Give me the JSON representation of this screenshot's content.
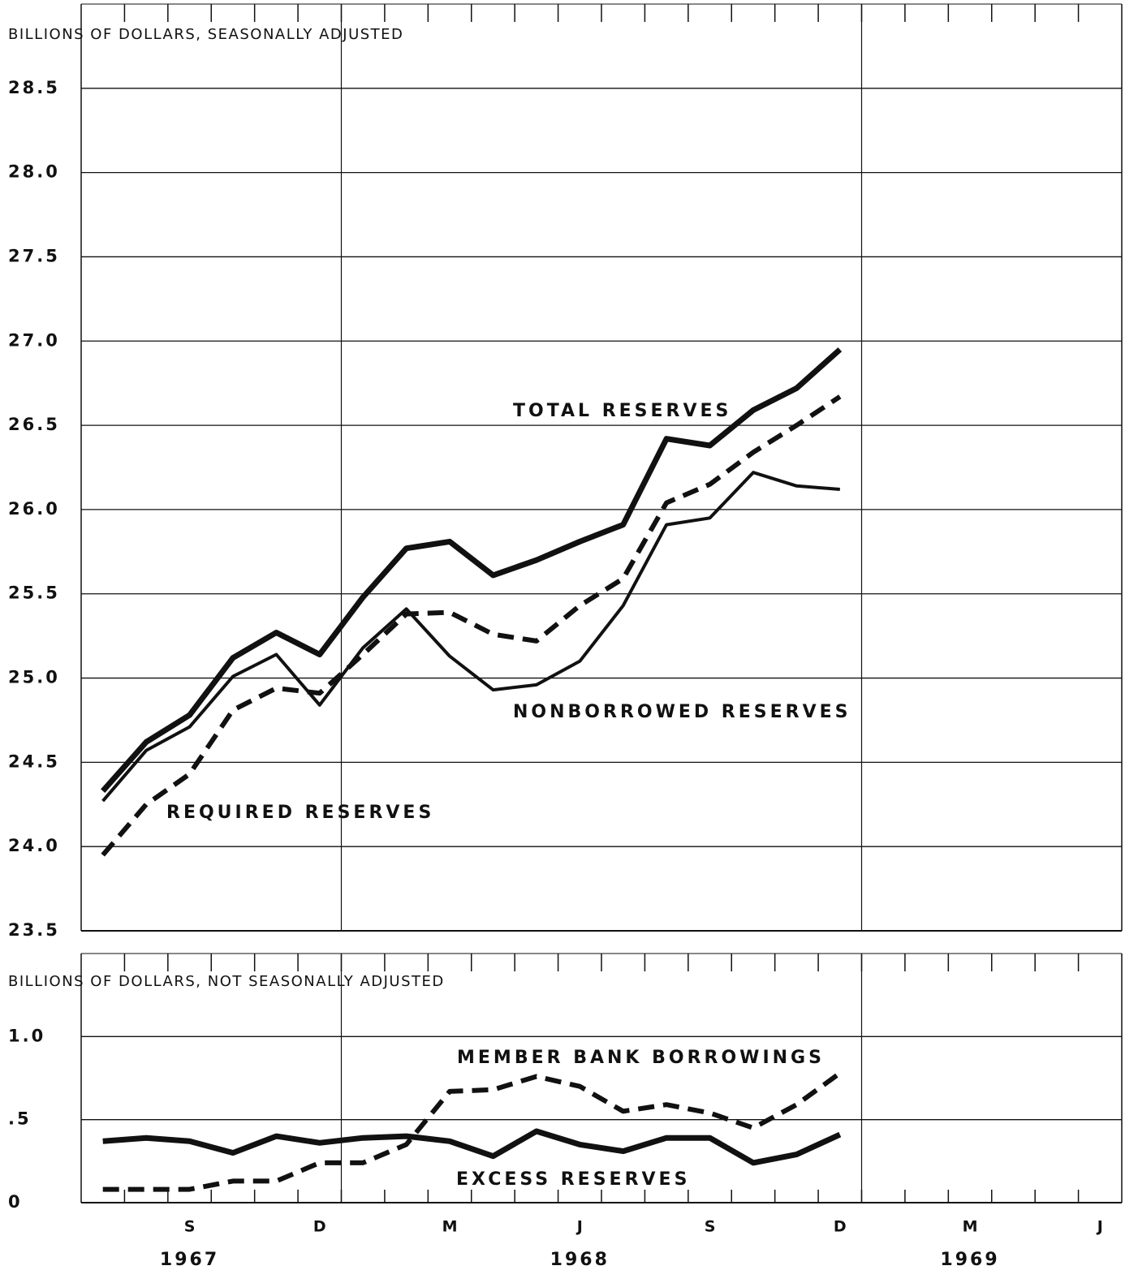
{
  "chart_data": [
    {
      "type": "line",
      "y_label": "BILLIONS OF DOLLARS, SEASONALLY ADJUSTED",
      "ylim": [
        23.5,
        29.0
      ],
      "yticks": [
        23.5,
        {
          "value": 24,
          "label": "24.0"
        },
        24.5,
        {
          "value": 25,
          "label": "25.0"
        },
        25.5,
        {
          "value": 26,
          "label": "26.0"
        },
        26.5,
        {
          "value": 27,
          "label": "27.0"
        },
        27.5,
        {
          "value": 28,
          "label": "28.0"
        },
        28.5
      ],
      "grid": true,
      "series": [
        {
          "name": "TOTAL RESERVES",
          "color": "#111111",
          "line_style": "heavy",
          "values": [
            24.33,
            24.62,
            24.78,
            25.12,
            25.27,
            25.14,
            25.48,
            25.77,
            25.81,
            25.61,
            25.7,
            25.81,
            25.91,
            26.42,
            26.38,
            26.59,
            26.72,
            26.95,
            null,
            null,
            null,
            null,
            null,
            null
          ]
        },
        {
          "name": "NONBORROWED RESERVES",
          "color": "#111111",
          "line_style": "light",
          "values": [
            24.27,
            24.57,
            24.71,
            25.01,
            25.14,
            24.84,
            25.18,
            25.41,
            25.13,
            24.93,
            24.96,
            25.1,
            25.43,
            25.91,
            25.95,
            26.22,
            26.14,
            26.12,
            null,
            null,
            null,
            null,
            null,
            null
          ]
        },
        {
          "name": "REQUIRED RESERVES",
          "color": "#111111",
          "line_style": "dashed",
          "values": [
            23.95,
            24.25,
            24.43,
            24.81,
            24.94,
            24.91,
            25.14,
            25.38,
            25.39,
            25.26,
            25.22,
            25.43,
            25.59,
            26.04,
            26.15,
            26.34,
            26.5,
            26.67,
            null,
            null,
            null,
            null,
            null,
            null
          ]
        }
      ]
    },
    {
      "type": "line",
      "y_label": "BILLIONS OF DOLLARS, NOT SEASONALLY ADJUSTED",
      "ylim": [
        0,
        1.5
      ],
      "yticks": [
        0,
        {
          "value": 0.5,
          "label": ".5"
        },
        {
          "value": 1,
          "label": "1.0"
        }
      ],
      "grid": true,
      "categories": [
        null,
        null,
        "S",
        null,
        null,
        "D",
        null,
        null,
        "M",
        null,
        null,
        "J",
        null,
        null,
        "S",
        null,
        null,
        "D",
        null,
        null,
        "M",
        null,
        null,
        "J"
      ],
      "year_labels": [
        "1967",
        "1968",
        "1969"
      ],
      "series": [
        {
          "name": "MEMBER BANK BORROWINGS",
          "color": "#111111",
          "line_style": "dashed",
          "values": [
            0.08,
            0.08,
            0.08,
            0.13,
            0.13,
            0.24,
            0.24,
            0.35,
            0.67,
            0.68,
            0.76,
            0.7,
            0.55,
            0.59,
            0.54,
            0.45,
            0.59,
            0.78,
            null,
            null,
            null,
            null,
            null,
            null
          ]
        },
        {
          "name": "EXCESS RESERVES",
          "color": "#111111",
          "line_style": "heavy",
          "values": [
            0.37,
            0.39,
            0.37,
            0.3,
            0.4,
            0.36,
            0.39,
            0.4,
            0.37,
            0.28,
            0.43,
            0.35,
            0.31,
            0.39,
            0.39,
            0.24,
            0.29,
            0.41,
            null,
            null,
            null,
            null,
            null,
            null
          ]
        }
      ]
    }
  ]
}
